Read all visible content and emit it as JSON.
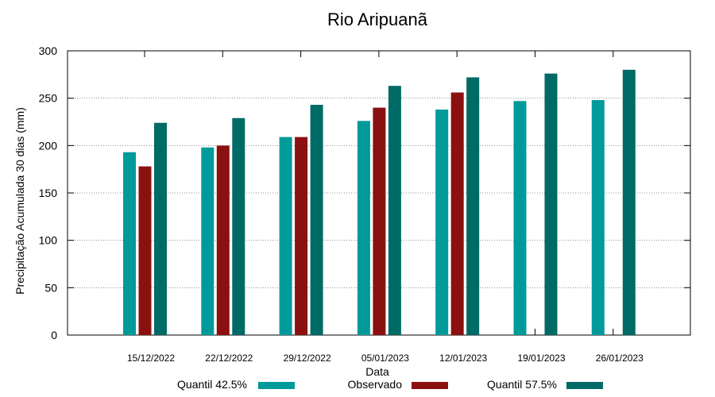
{
  "chart_data": {
    "type": "bar",
    "title": "Rio Aripuanã",
    "xlabel": "Data",
    "ylabel": "Precipitação Acumulada 30 dias (mm)",
    "ylim": [
      0,
      300
    ],
    "yticks": [
      "0",
      "50",
      "100",
      "150",
      "200",
      "250",
      "300"
    ],
    "grid": true,
    "legend_position": "bottom",
    "categories": [
      "15/12/2022",
      "22/12/2022",
      "29/12/2022",
      "05/01/2023",
      "12/01/2023",
      "19/01/2023",
      "26/01/2023"
    ],
    "series": [
      {
        "name": "Quantil 42.5%",
        "color": "#009a9a",
        "values": [
          193,
          198,
          209,
          226,
          238,
          247,
          248
        ]
      },
      {
        "name": "Observado",
        "color": "#8b1010",
        "values": [
          178,
          200,
          209,
          240,
          256,
          null,
          null
        ]
      },
      {
        "name": "Quantil 57.5%",
        "color": "#006a66",
        "values": [
          224,
          229,
          243,
          263,
          272,
          276,
          280
        ]
      }
    ]
  }
}
